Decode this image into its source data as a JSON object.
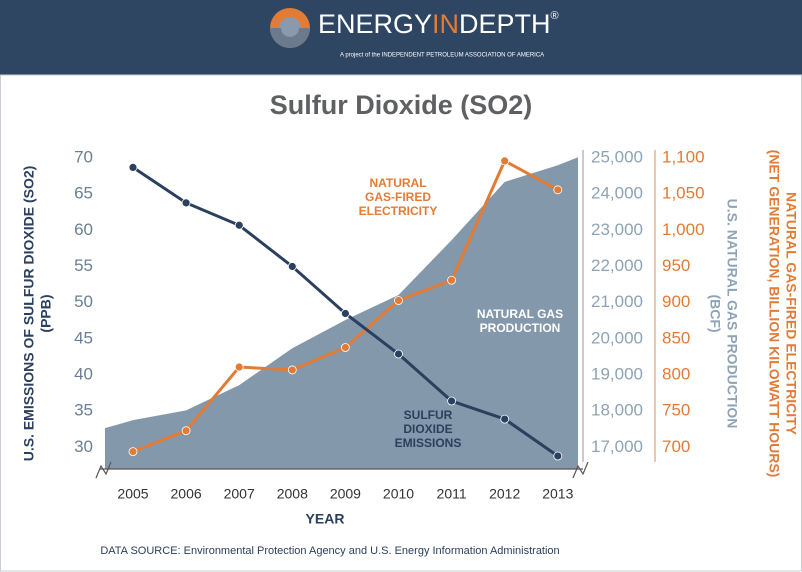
{
  "header": {
    "brand": [
      "ENERGY",
      "IN",
      "DEPTH"
    ],
    "mark": "®",
    "tagline": "A project of the INDEPENDENT PETROLEUM ASSOCIATION OF AMERICA"
  },
  "chart_data": {
    "type": "line",
    "title": "Sulfur Dioxide (SO2)",
    "x_label": "YEAR",
    "y_label": [
      "U.S. EMISSIONS OF SULFUR DIOXIDE (SO2)",
      "(PPB)"
    ],
    "y2_label": [
      "U.S. NATURAL GAS PRODUCTION",
      "(BCF)"
    ],
    "y3_label": [
      "NATURAL GAS-FIRED ELECTRICITY",
      "(NET GENERATION, BILLION KILOWATT HOURS)"
    ],
    "source": "DATA SOURCE: Environmental Protection Agency and U.S. Energy Information Administration",
    "categories": [
      "2005",
      "2006",
      "2007",
      "2008",
      "2009",
      "2010",
      "2011",
      "2012",
      "2013"
    ],
    "ylim": [
      27,
      70
    ],
    "yticks": [
      30,
      35,
      40,
      45,
      50,
      55,
      60,
      65,
      70
    ],
    "y2lim": [
      16400,
      25000
    ],
    "y2ticks": [
      {
        "value": 17000,
        "label": "17,000"
      },
      {
        "value": 18000,
        "label": "18,000"
      },
      {
        "value": 19000,
        "label": "19,000"
      },
      {
        "value": 20000,
        "label": "20,000"
      },
      {
        "value": 21000,
        "label": "21,000"
      },
      {
        "value": 22000,
        "label": "22,000"
      },
      {
        "value": 23000,
        "label": "23,000"
      },
      {
        "value": 24000,
        "label": "24,000"
      },
      {
        "value": 25000,
        "label": "25,000"
      }
    ],
    "y3lim": [
      670,
      1100
    ],
    "y3ticks": [
      700,
      750,
      800,
      850,
      900,
      950,
      {
        "value": 1000,
        "label": "1,000"
      },
      {
        "value": 1050,
        "label": "1,050"
      },
      {
        "value": 1100,
        "label": "1,100"
      }
    ],
    "series": [
      {
        "type": "area",
        "label": [
          "NATURAL GAS",
          "PRODUCTION"
        ],
        "color": "#8398aa",
        "axis": "y2",
        "values": [
          17750,
          18020,
          18720,
          19740,
          20520,
          21210,
          22730,
          24340,
          24800
        ]
      },
      {
        "type": "line",
        "label": [
          "NATURAL",
          "GAS-FIRED",
          "ELECTRICITY"
        ],
        "color": "#e27b36",
        "axis": "y3",
        "values": [
          694,
          723,
          811,
          807,
          838,
          903,
          931,
          1096,
          1056
        ]
      },
      {
        "type": "line",
        "label": [
          "SULFUR",
          "DIOXIDE",
          "EMISSIONS"
        ],
        "color": "#2b3f5e",
        "axis": "y",
        "values": [
          68.7,
          63.8,
          60.7,
          55.0,
          48.5,
          42.9,
          36.4,
          33.9,
          28.8
        ]
      }
    ]
  }
}
